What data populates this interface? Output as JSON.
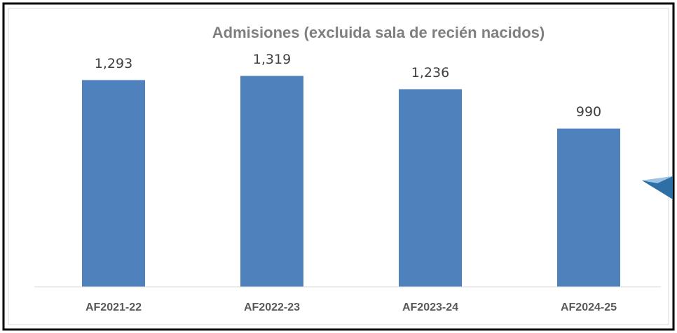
{
  "chart_data": {
    "type": "bar",
    "title": "Admisiones (excluida sala de recién nacidos)",
    "categories": [
      "AF2021-22",
      "AF2022-23",
      "AF2023-24",
      "AF2024-25"
    ],
    "values": [
      1293,
      1319,
      1236,
      990
    ],
    "value_labels": [
      "1,293",
      "1,319",
      "1,236",
      "990"
    ],
    "color": "#4f81bd",
    "ylim": [
      0,
      1400
    ]
  }
}
